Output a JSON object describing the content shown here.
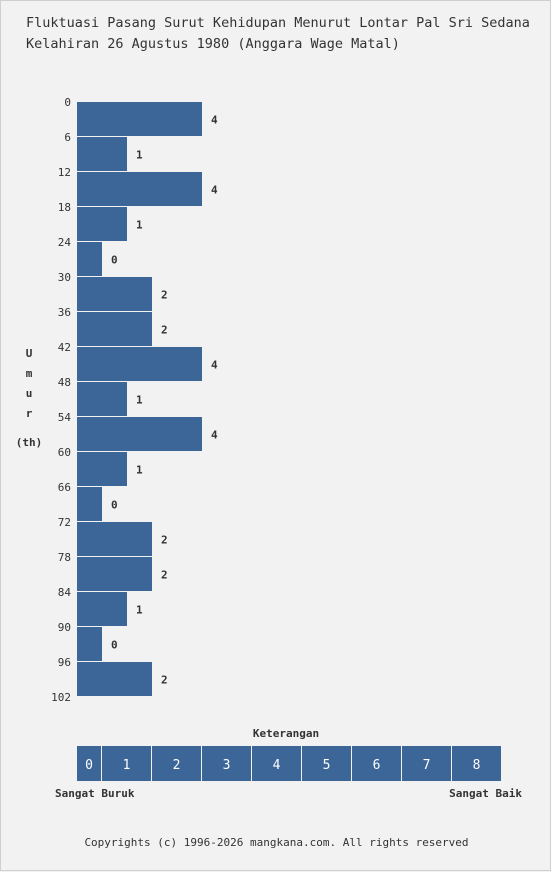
{
  "title_lines": [
    "Fluktuasi Pasang Surut Kehidupan Menurut Lontar Pal Sri Sedana",
    "Kelahiran 26 Agustus 1980 (Anggara Wage Matal)"
  ],
  "chart_data": {
    "type": "bar",
    "orientation": "horizontal",
    "title": "Fluktuasi Pasang Surut Kehidupan Menurut Lontar Pal Sri Sedana Kelahiran 26 Agustus 1980 (Anggara Wage Matal)",
    "y_ticks": [
      "0",
      "6",
      "12",
      "18",
      "24",
      "30",
      "36",
      "42",
      "48",
      "54",
      "60",
      "66",
      "72",
      "78",
      "84",
      "90",
      "96",
      "102"
    ],
    "values": [
      4,
      1,
      4,
      1,
      0,
      2,
      2,
      4,
      1,
      4,
      1,
      0,
      2,
      2,
      1,
      0,
      2
    ],
    "value_labels": [
      "4",
      "1",
      "4",
      "1",
      "0",
      "2",
      "2",
      "4",
      "1",
      "4",
      "1",
      "0",
      "2",
      "2",
      "1",
      "0",
      "2"
    ],
    "ylabel_letters": [
      "U",
      "m",
      "u",
      "r"
    ],
    "ylabel_unit": "(th)",
    "xlim": [
      0,
      8
    ],
    "bar_color": "#3d6698",
    "grid": false
  },
  "legend": {
    "title": "Keterangan",
    "scale": [
      "0",
      "1",
      "2",
      "3",
      "4",
      "5",
      "6",
      "7",
      "8"
    ],
    "left_label": "Sangat Buruk",
    "right_label": "Sangat Baik",
    "color": "#3d6698"
  },
  "footer": {
    "copyright": "Copyrights (c) 1996-2026 mangkana.com. All rights reserved"
  }
}
